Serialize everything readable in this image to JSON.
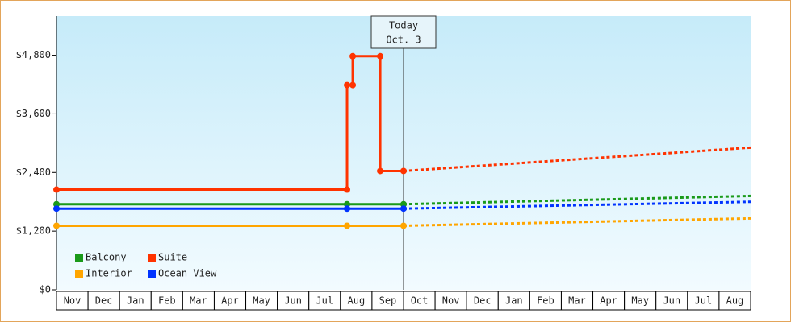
{
  "chart_data": {
    "type": "line",
    "categories": [
      "Nov",
      "Dec",
      "Jan",
      "Feb",
      "Mar",
      "Apr",
      "May",
      "Jun",
      "Jul",
      "Aug",
      "Sep",
      "Oct",
      "Nov",
      "Dec",
      "Jan",
      "Feb",
      "Mar",
      "Apr",
      "May",
      "Jun",
      "Jul",
      "Aug"
    ],
    "xlim": [
      0,
      22
    ],
    "ylim": [
      0,
      5600
    ],
    "yticks": [
      {
        "value": 0,
        "label": "$0"
      },
      {
        "value": 1200,
        "label": "$1,200"
      },
      {
        "value": 2400,
        "label": "$2,400"
      },
      {
        "value": 3600,
        "label": "$3,600"
      },
      {
        "value": 4800,
        "label": "$4,800"
      }
    ],
    "grid": false,
    "annotation": {
      "lines": [
        "Today",
        "Oct. 3"
      ],
      "x": 11
    },
    "series": [
      {
        "name": "Balcony",
        "color": "#1a9a1a",
        "x": [
          0,
          9.21,
          11
        ],
        "values": [
          1750,
          1750,
          1750
        ],
        "forecast_x": [
          11,
          22
        ],
        "forecast_values": [
          1750,
          1920
        ]
      },
      {
        "name": "Suite",
        "color": "#ff3300",
        "x": [
          0,
          9.21,
          9.21,
          9.39,
          9.39,
          10.26,
          10.26,
          11
        ],
        "values": [
          2050,
          2050,
          4190,
          4190,
          4780,
          4780,
          2430,
          2430
        ],
        "forecast_x": [
          11,
          22
        ],
        "forecast_values": [
          2430,
          2910
        ]
      },
      {
        "name": "Interior",
        "color": "#ffa500",
        "x": [
          0,
          9.21,
          11
        ],
        "values": [
          1310,
          1310,
          1310
        ],
        "forecast_x": [
          11,
          22
        ],
        "forecast_values": [
          1310,
          1460
        ]
      },
      {
        "name": "Ocean View",
        "color": "#0033ff",
        "x": [
          0,
          9.21,
          11
        ],
        "values": [
          1660,
          1660,
          1660
        ],
        "forecast_x": [
          11,
          22
        ],
        "forecast_values": [
          1660,
          1800
        ]
      }
    ]
  }
}
